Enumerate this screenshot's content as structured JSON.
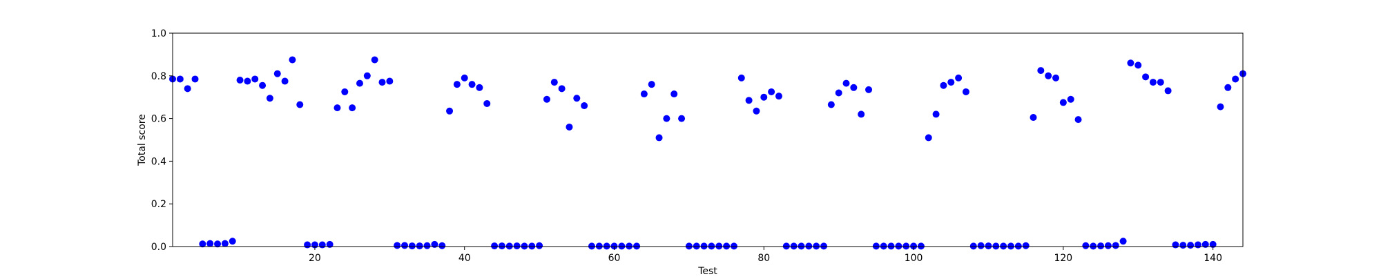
{
  "chart_data": {
    "type": "scatter",
    "title": "",
    "xlabel": "Test",
    "ylabel": "Total score",
    "xlim": [
      1,
      144
    ],
    "ylim": [
      0.0,
      1.0
    ],
    "grid": false,
    "legend": "none",
    "marker_color": "#0000ff",
    "axis_color": "#000000",
    "x_ticks": [
      20,
      40,
      60,
      80,
      100,
      120,
      140
    ],
    "x_tick_labels": [
      "20",
      "40",
      "60",
      "80",
      "100",
      "120",
      "140"
    ],
    "y_ticks": [
      0.0,
      0.2,
      0.4,
      0.6,
      0.8,
      1.0
    ],
    "y_tick_labels": [
      "0.0",
      "0.2",
      "0.4",
      "0.6",
      "0.8",
      "1.0"
    ],
    "series": [
      {
        "x": [
          1,
          2,
          3,
          4,
          5,
          6,
          7,
          8,
          9,
          10,
          11,
          12,
          13,
          14,
          15,
          16,
          17,
          18,
          19,
          20,
          21,
          22,
          23,
          24,
          25,
          26,
          27,
          28,
          29,
          30,
          31,
          32,
          33,
          34,
          35,
          36,
          37,
          38,
          39,
          40,
          41,
          42,
          43,
          44,
          45,
          46,
          47,
          48,
          49,
          50,
          51,
          52,
          53,
          54,
          55,
          56,
          57,
          58,
          59,
          60,
          61,
          62,
          63,
          64,
          65,
          66,
          67,
          68,
          69,
          70,
          71,
          72,
          73,
          74,
          75,
          76,
          77,
          78,
          79,
          80,
          81,
          82,
          83,
          84,
          85,
          86,
          87,
          88,
          89,
          90,
          91,
          92,
          93,
          94,
          95,
          96,
          97,
          98,
          99,
          100,
          101,
          102,
          103,
          104,
          105,
          106,
          107,
          108,
          109,
          110,
          111,
          112,
          113,
          114,
          115,
          116,
          117,
          118,
          119,
          120,
          121,
          122,
          123,
          124,
          125,
          126,
          127,
          128,
          129,
          130,
          131,
          132,
          133,
          134,
          135,
          136,
          137,
          138,
          139,
          140,
          141,
          142,
          143,
          144
        ],
        "y": [
          0.785,
          0.785,
          0.74,
          0.785,
          0.012,
          0.014,
          0.012,
          0.014,
          0.025,
          0.78,
          0.775,
          0.785,
          0.755,
          0.695,
          0.81,
          0.775,
          0.875,
          0.665,
          0.008,
          0.008,
          0.008,
          0.01,
          0.65,
          0.725,
          0.65,
          0.765,
          0.8,
          0.875,
          0.77,
          0.775,
          0.005,
          0.005,
          0.003,
          0.003,
          0.004,
          0.01,
          0.004,
          0.635,
          0.76,
          0.79,
          0.76,
          0.745,
          0.67,
          0.003,
          0.003,
          0.002,
          0.003,
          0.002,
          0.002,
          0.004,
          0.69,
          0.77,
          0.74,
          0.56,
          0.695,
          0.66,
          0.002,
          0.002,
          0.002,
          0.002,
          0.002,
          0.002,
          0.002,
          0.715,
          0.76,
          0.51,
          0.6,
          0.715,
          0.6,
          0.002,
          0.002,
          0.002,
          0.002,
          0.002,
          0.002,
          0.002,
          0.79,
          0.685,
          0.635,
          0.7,
          0.725,
          0.705,
          0.002,
          0.002,
          0.002,
          0.002,
          0.002,
          0.002,
          0.665,
          0.72,
          0.765,
          0.745,
          0.62,
          0.735,
          0.002,
          0.002,
          0.002,
          0.002,
          0.002,
          0.002,
          0.002,
          0.51,
          0.62,
          0.755,
          0.77,
          0.79,
          0.725,
          0.002,
          0.004,
          0.003,
          0.002,
          0.002,
          0.002,
          0.002,
          0.004,
          0.605,
          0.825,
          0.8,
          0.79,
          0.675,
          0.69,
          0.595,
          0.004,
          0.002,
          0.003,
          0.004,
          0.005,
          0.025,
          0.86,
          0.85,
          0.795,
          0.77,
          0.77,
          0.73,
          0.008,
          0.006,
          0.006,
          0.008,
          0.01,
          0.01,
          0.655,
          0.745,
          0.785,
          0.81
        ]
      }
    ]
  }
}
